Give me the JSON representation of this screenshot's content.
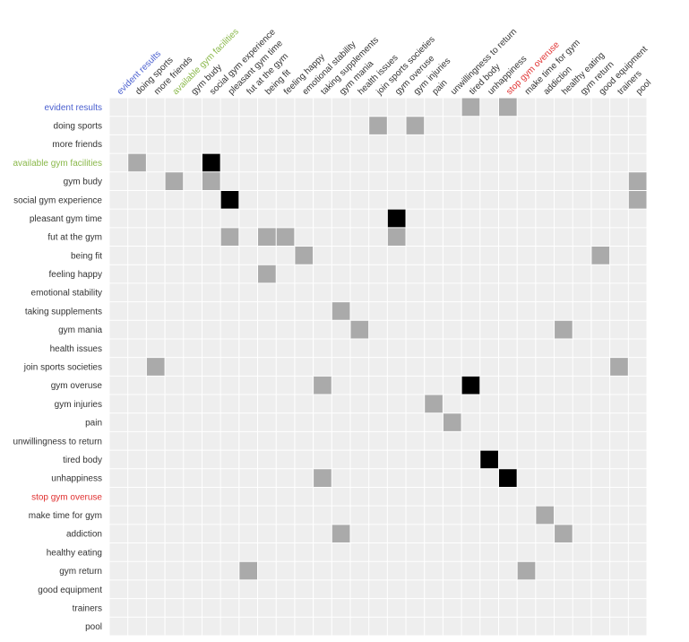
{
  "chart_data": {
    "type": "heatmap",
    "colors": {
      "background": "#eeeeee",
      "grid": "#ffffff",
      "weak": "#aaaaaa",
      "strong": "#000000",
      "label_default": "#333333",
      "label_blue": "#4a5fcf",
      "label_green": "#8ab84a",
      "label_red": "#e03030"
    },
    "labels": [
      {
        "text": "evident results",
        "color": "blue"
      },
      {
        "text": "doing sports",
        "color": "default"
      },
      {
        "text": "more friends",
        "color": "default"
      },
      {
        "text": "available gym facilities",
        "color": "green"
      },
      {
        "text": "gym budy",
        "color": "default"
      },
      {
        "text": "social gym experience",
        "color": "default"
      },
      {
        "text": "pleasant gym time",
        "color": "default"
      },
      {
        "text": "fut at the gym",
        "color": "default"
      },
      {
        "text": "being fit",
        "color": "default"
      },
      {
        "text": "feeling happy",
        "color": "default"
      },
      {
        "text": "emotional stability",
        "color": "default"
      },
      {
        "text": "taking supplements",
        "color": "default"
      },
      {
        "text": "gym mania",
        "color": "default"
      },
      {
        "text": "health issues",
        "color": "default"
      },
      {
        "text": "join sports societies",
        "color": "default"
      },
      {
        "text": "gym overuse",
        "color": "default"
      },
      {
        "text": "gym injuries",
        "color": "default"
      },
      {
        "text": "pain",
        "color": "default"
      },
      {
        "text": "unwillingness to return",
        "color": "default"
      },
      {
        "text": "tired body",
        "color": "default"
      },
      {
        "text": "unhappiness",
        "color": "default"
      },
      {
        "text": "stop gym overuse",
        "color": "red"
      },
      {
        "text": "make time for gym",
        "color": "default"
      },
      {
        "text": "addiction",
        "color": "default"
      },
      {
        "text": "healthy eating",
        "color": "default"
      },
      {
        "text": "gym return",
        "color": "default"
      },
      {
        "text": "good equipment",
        "color": "default"
      },
      {
        "text": "trainers",
        "color": "default"
      },
      {
        "text": "pool",
        "color": "default"
      }
    ],
    "cells": [
      {
        "row": 0,
        "col": 19,
        "value": 1
      },
      {
        "row": 0,
        "col": 21,
        "value": 1
      },
      {
        "row": 1,
        "col": 14,
        "value": 1
      },
      {
        "row": 1,
        "col": 16,
        "value": 1
      },
      {
        "row": 3,
        "col": 1,
        "value": 1
      },
      {
        "row": 3,
        "col": 5,
        "value": 2
      },
      {
        "row": 4,
        "col": 3,
        "value": 1
      },
      {
        "row": 4,
        "col": 5,
        "value": 1
      },
      {
        "row": 4,
        "col": 28,
        "value": 1
      },
      {
        "row": 5,
        "col": 6,
        "value": 2
      },
      {
        "row": 5,
        "col": 28,
        "value": 1
      },
      {
        "row": 6,
        "col": 15,
        "value": 2
      },
      {
        "row": 7,
        "col": 6,
        "value": 1
      },
      {
        "row": 7,
        "col": 8,
        "value": 1
      },
      {
        "row": 7,
        "col": 9,
        "value": 1
      },
      {
        "row": 7,
        "col": 15,
        "value": 1
      },
      {
        "row": 8,
        "col": 10,
        "value": 1
      },
      {
        "row": 8,
        "col": 26,
        "value": 1
      },
      {
        "row": 9,
        "col": 8,
        "value": 1
      },
      {
        "row": 11,
        "col": 12,
        "value": 1
      },
      {
        "row": 12,
        "col": 13,
        "value": 1
      },
      {
        "row": 12,
        "col": 24,
        "value": 1
      },
      {
        "row": 14,
        "col": 2,
        "value": 1
      },
      {
        "row": 14,
        "col": 27,
        "value": 1
      },
      {
        "row": 15,
        "col": 11,
        "value": 1
      },
      {
        "row": 15,
        "col": 19,
        "value": 2
      },
      {
        "row": 16,
        "col": 17,
        "value": 1
      },
      {
        "row": 17,
        "col": 18,
        "value": 1
      },
      {
        "row": 19,
        "col": 20,
        "value": 2
      },
      {
        "row": 20,
        "col": 11,
        "value": 1
      },
      {
        "row": 20,
        "col": 21,
        "value": 2
      },
      {
        "row": 22,
        "col": 23,
        "value": 1
      },
      {
        "row": 23,
        "col": 12,
        "value": 1
      },
      {
        "row": 23,
        "col": 24,
        "value": 1
      },
      {
        "row": 25,
        "col": 7,
        "value": 1
      },
      {
        "row": 25,
        "col": 22,
        "value": 1
      }
    ]
  }
}
